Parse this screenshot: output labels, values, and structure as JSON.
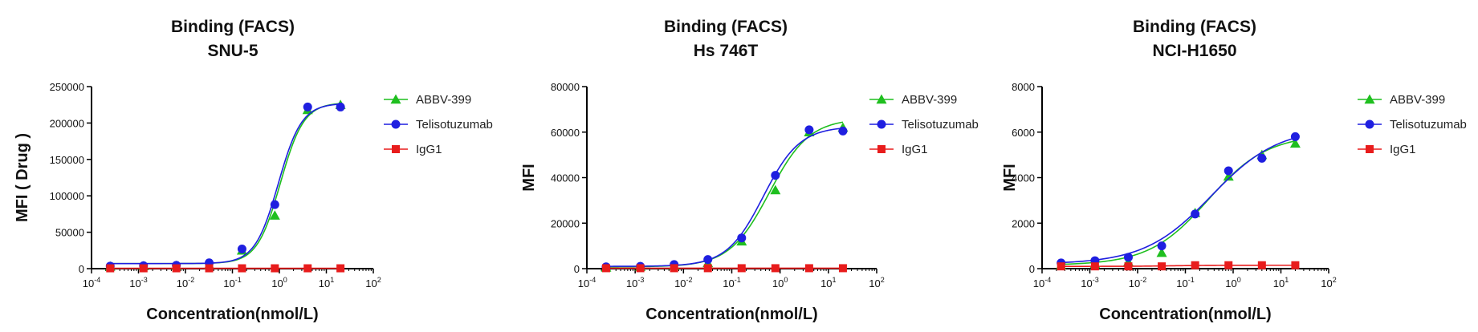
{
  "colors": {
    "ABBV-399": "#1fbf1f",
    "Telisotuzumab": "#1f1fe0",
    "IgG1": "#e81c1c"
  },
  "chart_data": [
    {
      "type": "scatter",
      "title": [
        "Binding (FACS)",
        "SNU-5"
      ],
      "xlabel": "Concentration(nmol/L)",
      "ylabel": "MFI ( Drug )",
      "xscale": "log",
      "xlim": [
        0.0001,
        100
      ],
      "ylim": [
        0,
        250000
      ],
      "yticks": [
        0,
        50000,
        100000,
        150000,
        200000,
        250000
      ],
      "ytick_labels": [
        "0",
        "50000",
        "100000",
        "150000",
        "200000",
        "250000"
      ],
      "x": [
        0.00025,
        0.00128,
        0.0064,
        0.032,
        0.16,
        0.8,
        4,
        20
      ],
      "legend_position": "top-right",
      "series": [
        {
          "name": "ABBV-399",
          "marker": "triangle",
          "values": [
            3000,
            3500,
            4000,
            5000,
            25000,
            73000,
            218000,
            225000
          ],
          "fit": {
            "bottom": 7000,
            "top": 228000,
            "ec50": 1.05,
            "hill": 1.75
          }
        },
        {
          "name": "Telisotuzumab",
          "marker": "circle",
          "values": [
            3500,
            4000,
            4500,
            8000,
            27000,
            88000,
            222000,
            222000
          ],
          "fit": {
            "bottom": 7000,
            "top": 227000,
            "ec50": 0.95,
            "hill": 1.75
          }
        },
        {
          "name": "IgG1",
          "marker": "square",
          "values": [
            500,
            500,
            500,
            500,
            500,
            500,
            500,
            500
          ],
          "fit": {
            "bottom": 500,
            "top": 500,
            "ec50": 1,
            "hill": 1
          }
        }
      ]
    },
    {
      "type": "scatter",
      "title": [
        "Binding (FACS)",
        "Hs 746T"
      ],
      "xlabel": "Concentration(nmol/L)",
      "ylabel": "MFI",
      "xscale": "log",
      "xlim": [
        0.0001,
        100
      ],
      "ylim": [
        0,
        80000
      ],
      "yticks": [
        0,
        20000,
        40000,
        60000,
        80000
      ],
      "ytick_labels": [
        "0",
        "20000",
        "40000",
        "60000",
        "80000"
      ],
      "x": [
        0.00025,
        0.00128,
        0.0064,
        0.032,
        0.16,
        0.8,
        4,
        20
      ],
      "legend_position": "top-right",
      "series": [
        {
          "name": "ABBV-399",
          "marker": "triangle",
          "values": [
            500,
            800,
            1200,
            2500,
            12000,
            34500,
            60000,
            62000
          ],
          "fit": {
            "bottom": 800,
            "top": 66000,
            "ec50": 0.6,
            "hill": 1.05
          }
        },
        {
          "name": "Telisotuzumab",
          "marker": "circle",
          "values": [
            800,
            1000,
            1800,
            4000,
            13500,
            41000,
            61000,
            60500
          ],
          "fit": {
            "bottom": 1000,
            "top": 62500,
            "ec50": 0.45,
            "hill": 1.15
          }
        },
        {
          "name": "IgG1",
          "marker": "square",
          "values": [
            200,
            200,
            200,
            200,
            200,
            200,
            200,
            200
          ],
          "fit": {
            "bottom": 200,
            "top": 200,
            "ec50": 1,
            "hill": 1
          }
        }
      ]
    },
    {
      "type": "scatter",
      "title": [
        "Binding (FACS)",
        "NCI-H1650"
      ],
      "xlabel": "Concentration(nmol/L)",
      "ylabel": "MFI",
      "xscale": "log",
      "xlim": [
        0.0001,
        100
      ],
      "ylim": [
        0,
        8000
      ],
      "yticks": [
        0,
        2000,
        4000,
        6000,
        8000
      ],
      "ytick_labels": [
        "0",
        "2000",
        "4000",
        "6000",
        "8000"
      ],
      "x": [
        0.00025,
        0.00128,
        0.0064,
        0.032,
        0.16,
        0.8,
        4,
        20
      ],
      "legend_position": "top-right",
      "series": [
        {
          "name": "ABBV-399",
          "marker": "triangle",
          "values": [
            150,
            200,
            300,
            700,
            2450,
            4050,
            5000,
            5500
          ],
          "fit": {
            "bottom": 150,
            "top": 5900,
            "ec50": 0.3,
            "hill": 0.7
          }
        },
        {
          "name": "Telisotuzumab",
          "marker": "circle",
          "values": [
            250,
            350,
            500,
            1000,
            2400,
            4300,
            4850,
            5800
          ],
          "fit": {
            "bottom": 200,
            "top": 6200,
            "ec50": 0.35,
            "hill": 0.62
          }
        },
        {
          "name": "IgG1",
          "marker": "square",
          "values": [
            100,
            100,
            100,
            100,
            150,
            150,
            150,
            150
          ],
          "fit": {
            "bottom": 100,
            "top": 150,
            "ec50": 0.05,
            "hill": 1
          }
        }
      ]
    }
  ]
}
